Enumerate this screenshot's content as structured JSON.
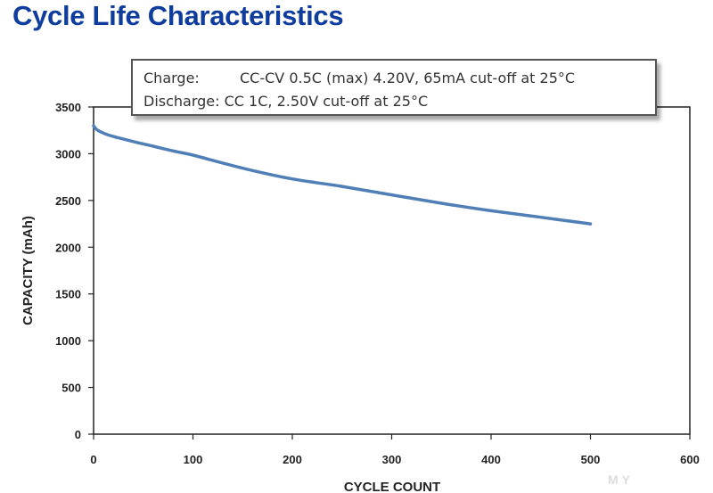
{
  "page_title": "Cycle Life Characteristics",
  "annotation": {
    "charge_label": "Charge:",
    "charge_text": "CC-CV 0.5C (max) 4.20V, 65mA cut-off at 25°C",
    "discharge_label": "Discharge:",
    "discharge_text": "CC 1C, 2.50V cut-off at 25°C"
  },
  "watermark": "MY",
  "chart_data": {
    "type": "line",
    "title": "Cycle Life Characteristics",
    "xlabel": "CYCLE COUNT",
    "ylabel": "CAPACITY (mAh)",
    "xlim": [
      0,
      600
    ],
    "ylim": [
      0,
      3500
    ],
    "xticks": [
      0,
      100,
      200,
      300,
      400,
      500,
      600
    ],
    "yticks": [
      0,
      500,
      1000,
      1500,
      2000,
      2500,
      3000,
      3500
    ],
    "grid": false,
    "line_color": "#4f7fb6",
    "series": [
      {
        "x": [
          0,
          3,
          8,
          15,
          25,
          40,
          60,
          80,
          100,
          130,
          160,
          200,
          250,
          300,
          350,
          400,
          450,
          500
        ],
        "y": [
          3300,
          3260,
          3230,
          3200,
          3170,
          3130,
          3080,
          3030,
          2985,
          2900,
          2820,
          2730,
          2650,
          2560,
          2470,
          2390,
          2320,
          2250
        ]
      }
    ]
  }
}
